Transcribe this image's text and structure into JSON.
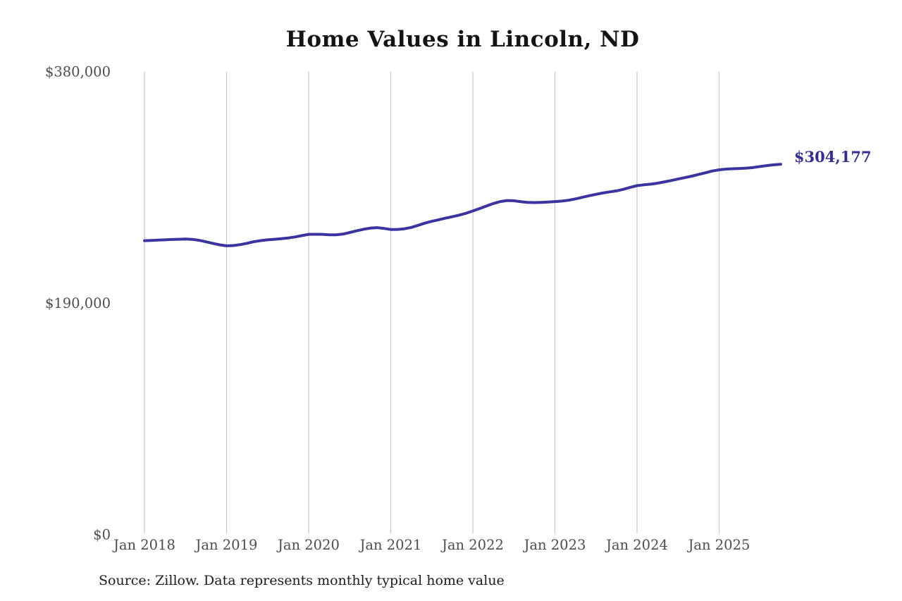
{
  "chart_data": {
    "type": "line",
    "title": "Home Values in Lincoln, ND",
    "source": "Source: Zillow. Data represents monthly typical home value",
    "series_name": "Monthly typical home value",
    "end_label": "$304,177",
    "end_value": 304177,
    "x_tick_labels": [
      "Jan 2018",
      "Jan 2019",
      "Jan 2020",
      "Jan 2021",
      "Jan 2022",
      "Jan 2023",
      "Jan 2024",
      "Jan 2025"
    ],
    "y_ticks": [
      {
        "label": "$0",
        "value": 0
      },
      {
        "label": "$190,000",
        "value": 190000
      },
      {
        "label": "$380,000",
        "value": 380000
      }
    ],
    "ylim": [
      0,
      380000
    ],
    "grid": "vertical-only",
    "legend": "none",
    "months": [
      "2018-01",
      "2018-02",
      "2018-03",
      "2018-04",
      "2018-05",
      "2018-06",
      "2018-07",
      "2018-08",
      "2018-09",
      "2018-10",
      "2018-11",
      "2018-12",
      "2019-01",
      "2019-02",
      "2019-03",
      "2019-04",
      "2019-05",
      "2019-06",
      "2019-07",
      "2019-08",
      "2019-09",
      "2019-10",
      "2019-11",
      "2019-12",
      "2020-01",
      "2020-02",
      "2020-03",
      "2020-04",
      "2020-05",
      "2020-06",
      "2020-07",
      "2020-08",
      "2020-09",
      "2020-10",
      "2020-11",
      "2020-12",
      "2021-01",
      "2021-02",
      "2021-03",
      "2021-04",
      "2021-05",
      "2021-06",
      "2021-07",
      "2021-08",
      "2021-09",
      "2021-10",
      "2021-11",
      "2021-12",
      "2022-01",
      "2022-02",
      "2022-03",
      "2022-04",
      "2022-05",
      "2022-06",
      "2022-07",
      "2022-08",
      "2022-09",
      "2022-10",
      "2022-11",
      "2022-12",
      "2023-01",
      "2023-02",
      "2023-03",
      "2023-04",
      "2023-05",
      "2023-06",
      "2023-07",
      "2023-08",
      "2023-09",
      "2023-10",
      "2023-11",
      "2023-12",
      "2024-01",
      "2024-02",
      "2024-03",
      "2024-04",
      "2024-05",
      "2024-06",
      "2024-07",
      "2024-08",
      "2024-09",
      "2024-10",
      "2024-11",
      "2024-12",
      "2025-01",
      "2025-02",
      "2025-03",
      "2025-04",
      "2025-05",
      "2025-06",
      "2025-07",
      "2025-08",
      "2025-09",
      "2025-10"
    ],
    "values": [
      241400,
      241600,
      241900,
      242100,
      242400,
      242600,
      242800,
      242500,
      241700,
      240500,
      239200,
      238000,
      237200,
      237400,
      238200,
      239300,
      240600,
      241500,
      242100,
      242600,
      243100,
      243700,
      244500,
      245600,
      246600,
      246700,
      246600,
      246300,
      246200,
      246800,
      248100,
      249500,
      250800,
      251700,
      252100,
      251500,
      250600,
      250700,
      251200,
      252300,
      254000,
      255800,
      257300,
      258600,
      259900,
      261100,
      262400,
      263900,
      265800,
      267800,
      269900,
      271900,
      273500,
      274400,
      274200,
      273400,
      272800,
      272700,
      272900,
      273200,
      273500,
      273900,
      274600,
      275700,
      277000,
      278300,
      279500,
      280600,
      281500,
      282300,
      283600,
      285200,
      286600,
      287300,
      287800,
      288600,
      289700,
      290800,
      292000,
      293200,
      294400,
      295800,
      297200,
      298600,
      299600,
      300200,
      300500,
      300700,
      301000,
      301500,
      302300,
      303100,
      303700,
      304177
    ]
  },
  "colors": {
    "line": "#3b34a0",
    "grid": "#c6c6c6",
    "tick_text": "#4d4d4d",
    "end_label_text": "#332d96"
  }
}
